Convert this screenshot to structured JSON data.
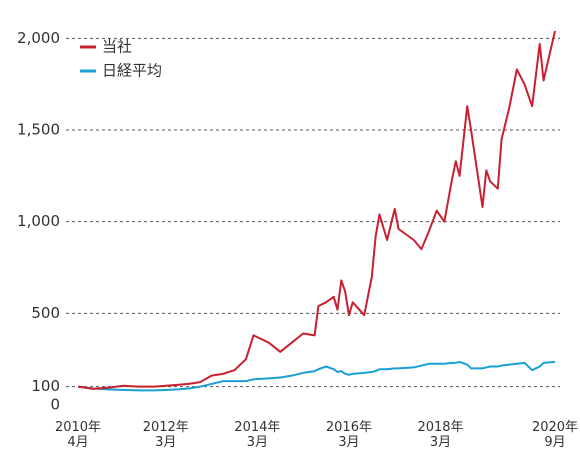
{
  "chart_data": {
    "type": "line",
    "x": [
      "2010-04",
      "2010-08",
      "2010-12",
      "2011-04",
      "2011-08",
      "2011-12",
      "2012-03",
      "2012-06",
      "2012-09",
      "2012-12",
      "2013-03",
      "2013-06",
      "2013-09",
      "2013-12",
      "2014-02",
      "2014-06",
      "2014-09",
      "2014-12",
      "2015-03",
      "2015-06",
      "2015-07",
      "2015-09",
      "2015-11",
      "2015-12",
      "2016-01",
      "2016-02",
      "2016-03",
      "2016-04",
      "2016-07",
      "2016-09",
      "2016-10",
      "2016-11",
      "2017-01",
      "2017-03",
      "2017-04",
      "2017-08",
      "2017-10",
      "2017-12",
      "2018-02",
      "2018-04",
      "2018-06",
      "2018-07",
      "2018-08",
      "2018-10",
      "2018-11",
      "2019-02",
      "2019-03",
      "2019-04",
      "2019-06",
      "2019-07",
      "2019-09",
      "2019-11",
      "2020-01",
      "2020-03",
      "2020-05",
      "2020-06",
      "2020-09"
    ],
    "series": [
      {
        "name": "当社",
        "color": "#c8202f",
        "values": [
          100,
          88,
          95,
          105,
          100,
          100,
          105,
          110,
          115,
          125,
          160,
          170,
          190,
          250,
          380,
          340,
          290,
          340,
          390,
          380,
          540,
          560,
          590,
          520,
          680,
          620,
          490,
          560,
          490,
          700,
          920,
          1040,
          900,
          1070,
          960,
          900,
          850,
          950,
          1060,
          1000,
          1230,
          1330,
          1250,
          1630,
          1500,
          1080,
          1280,
          1220,
          1180,
          1450,
          1620,
          1830,
          1750,
          1630,
          1970,
          1770,
          2040
        ]
      },
      {
        "name": "日経平均",
        "color": "#1a9fd6",
        "values": [
          100,
          90,
          85,
          82,
          80,
          80,
          82,
          85,
          90,
          100,
          115,
          130,
          130,
          130,
          140,
          145,
          150,
          160,
          175,
          185,
          195,
          210,
          195,
          180,
          185,
          170,
          165,
          170,
          175,
          180,
          185,
          195,
          195,
          200,
          200,
          205,
          215,
          225,
          225,
          225,
          230,
          230,
          235,
          220,
          200,
          200,
          205,
          210,
          210,
          215,
          220,
          225,
          230,
          190,
          210,
          230,
          235
        ]
      }
    ],
    "xlim": [
      "2010-04",
      "2020-09"
    ],
    "xticks": [
      {
        "value": "2010-04",
        "label": "2010年\n4月"
      },
      {
        "value": "2012-03",
        "label": "2012年\n3月"
      },
      {
        "value": "2014-03",
        "label": "2014年\n3月"
      },
      {
        "value": "2016-03",
        "label": "2016年\n3月"
      },
      {
        "value": "2018-03",
        "label": "2018年\n3月"
      },
      {
        "value": "2020-09",
        "label": "2020年\n9月"
      }
    ],
    "ylim": [
      0,
      2100
    ],
    "yticks": [
      0,
      100,
      500,
      {
        "value": 1000,
        "label": "1,000"
      },
      {
        "value": 1500,
        "label": "1,500"
      },
      {
        "value": 2000,
        "label": "2,000"
      }
    ],
    "grid": true,
    "legend": "top-left"
  }
}
